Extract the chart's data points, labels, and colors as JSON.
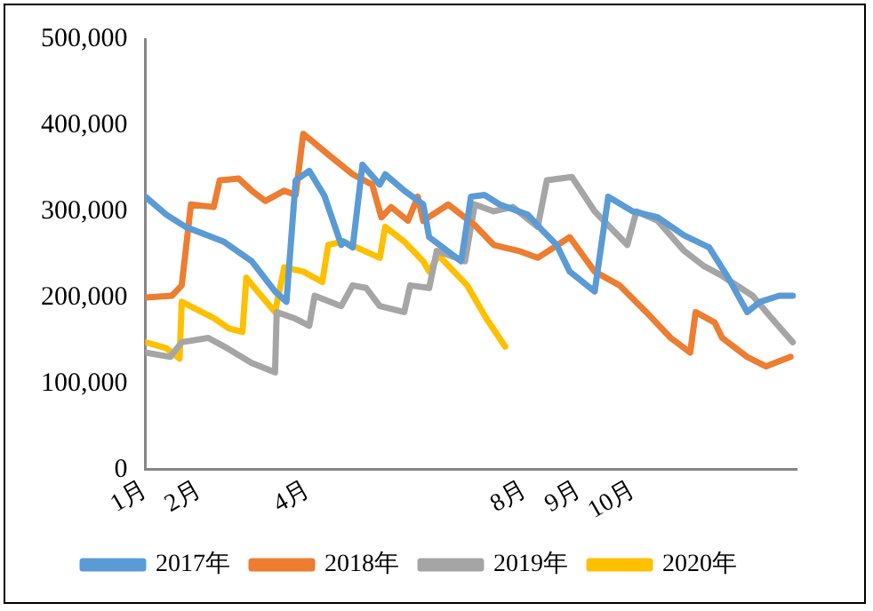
{
  "chart_data": {
    "type": "line",
    "xlim": [
      1,
      13
    ],
    "xticks": [
      {
        "value": 1,
        "label": "1月"
      },
      {
        "value": 2,
        "label": "2月"
      },
      {
        "value": 4,
        "label": "4月"
      },
      {
        "value": 8,
        "label": "8月"
      },
      {
        "value": 9,
        "label": "9月"
      },
      {
        "value": 10,
        "label": "10月"
      }
    ],
    "ylim": [
      0,
      500000
    ],
    "yticks": [
      0,
      {
        "value": 100000,
        "label": "100,000"
      },
      {
        "value": 200000,
        "label": "200,000"
      },
      {
        "value": 300000,
        "label": "300,000"
      },
      {
        "value": 400000,
        "label": "400,000"
      },
      {
        "value": 500000,
        "label": "500,000"
      }
    ],
    "grid": false,
    "legend": "bottom",
    "marker": "none",
    "line_style": "solid",
    "series": [
      {
        "name": "2017年",
        "color": "#5b9bd5",
        "x": [
          1.0,
          1.39,
          1.74,
          2.44,
          2.96,
          3.39,
          3.6,
          3.77,
          4.02,
          4.3,
          4.61,
          4.65,
          4.82,
          5.0,
          5.32,
          5.42,
          5.77,
          6.12,
          6.23,
          6.82,
          7.0,
          7.25,
          7.53,
          8.05,
          8.33,
          8.58,
          8.82,
          9.28,
          9.53,
          9.98,
          10.44,
          10.93,
          11.39,
          11.74,
          12.09,
          12.33,
          12.68,
          12.93
        ],
        "values": [
          317000,
          296000,
          282000,
          265000,
          242000,
          207000,
          195000,
          336000,
          347000,
          318000,
          261000,
          265000,
          258000,
          354000,
          331000,
          343000,
          324000,
          308000,
          270000,
          242000,
          317000,
          319000,
          308000,
          296000,
          277000,
          261000,
          230000,
          207000,
          317000,
          300000,
          293000,
          272000,
          258000,
          223000,
          183000,
          195000,
          202000,
          202000
        ]
      },
      {
        "name": "2018年",
        "color": "#ed7d31",
        "x": [
          1.0,
          1.49,
          1.67,
          1.84,
          2.26,
          2.37,
          2.72,
          2.96,
          3.21,
          3.56,
          3.77,
          3.91,
          4.37,
          4.82,
          5.18,
          5.35,
          5.53,
          5.84,
          6.02,
          6.12,
          6.58,
          7.07,
          7.42,
          7.88,
          8.23,
          8.82,
          9.28,
          9.74,
          10.23,
          10.68,
          11.04,
          11.14,
          11.49,
          11.63,
          12.09,
          12.44,
          12.89
        ],
        "values": [
          200000,
          202000,
          214000,
          308000,
          305000,
          336000,
          338000,
          324000,
          312000,
          324000,
          319000,
          390000,
          366000,
          343000,
          331000,
          293000,
          305000,
          289000,
          317000,
          289000,
          308000,
          284000,
          261000,
          254000,
          246000,
          270000,
          230000,
          214000,
          183000,
          153000,
          136000,
          183000,
          171000,
          153000,
          131000,
          120000,
          131000
        ]
      },
      {
        "name": "2019年",
        "color": "#a5a5a5",
        "x": [
          1.0,
          1.46,
          1.67,
          2.16,
          2.51,
          2.96,
          3.39,
          3.42,
          3.74,
          4.02,
          4.12,
          4.61,
          4.82,
          5.07,
          5.32,
          5.77,
          5.88,
          6.23,
          6.37,
          6.72,
          6.89,
          7.07,
          7.42,
          7.77,
          8.23,
          8.4,
          8.86,
          9.28,
          9.88,
          10.05,
          10.44,
          10.93,
          11.28,
          11.63,
          12.19,
          12.54,
          12.93
        ],
        "values": [
          136000,
          131000,
          148000,
          153000,
          141000,
          124000,
          113000,
          183000,
          176000,
          167000,
          202000,
          190000,
          214000,
          211000,
          190000,
          183000,
          214000,
          211000,
          254000,
          246000,
          242000,
          308000,
          300000,
          305000,
          282000,
          336000,
          340000,
          300000,
          261000,
          300000,
          289000,
          254000,
          237000,
          225000,
          202000,
          176000,
          148000
        ]
      },
      {
        "name": "2020年",
        "color": "#ffc000",
        "x": [
          1.0,
          1.39,
          1.63,
          1.67,
          2.26,
          2.54,
          2.79,
          2.86,
          3.07,
          3.39,
          3.56,
          3.91,
          4.26,
          4.37,
          4.65,
          5.32,
          5.42,
          5.77,
          6.12,
          6.23,
          6.4,
          6.93,
          7.28,
          7.63
        ],
        "values": [
          148000,
          141000,
          129000,
          195000,
          176000,
          164000,
          160000,
          223000,
          207000,
          183000,
          235000,
          230000,
          218000,
          261000,
          265000,
          246000,
          282000,
          265000,
          242000,
          230000,
          249000,
          214000,
          176000,
          143000
        ]
      }
    ]
  }
}
